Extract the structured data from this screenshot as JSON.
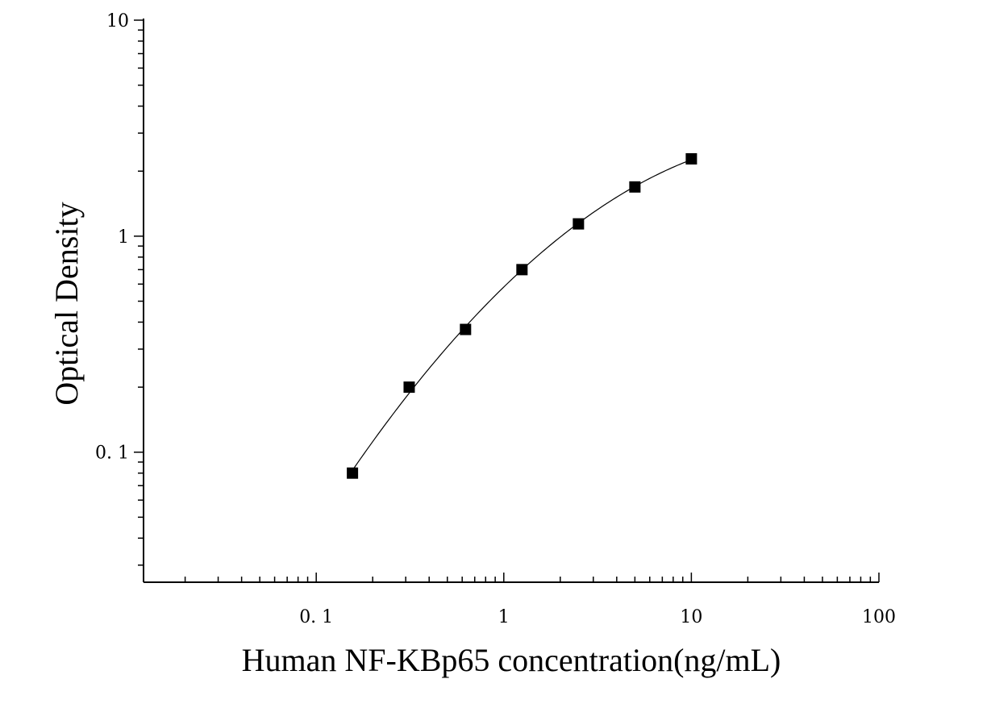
{
  "chart_data": {
    "type": "scatter",
    "title": "",
    "xlabel": "Human NF-KBp65 concentration(ng/mL)",
    "ylabel": "Optical Density",
    "x_scale": "log",
    "y_scale": "log",
    "xlim": [
      0.012,
      100
    ],
    "ylim": [
      0.025,
      10
    ],
    "x_ticks": [
      {
        "value": 0.1,
        "label": "0. 1"
      },
      {
        "value": 1,
        "label": "1"
      },
      {
        "value": 10,
        "label": "10"
      },
      {
        "value": 100,
        "label": "100"
      }
    ],
    "y_ticks": [
      {
        "value": 0.1,
        "label": "0. 1"
      },
      {
        "value": 1,
        "label": "1"
      },
      {
        "value": 10,
        "label": "10"
      }
    ],
    "grid": false,
    "legend": "none",
    "points": [
      {
        "x": 0.156,
        "y": 0.08
      },
      {
        "x": 0.313,
        "y": 0.2
      },
      {
        "x": 0.625,
        "y": 0.37
      },
      {
        "x": 1.25,
        "y": 0.7
      },
      {
        "x": 2.5,
        "y": 1.14
      },
      {
        "x": 5,
        "y": 1.69
      },
      {
        "x": 10,
        "y": 2.28
      }
    ],
    "fit_curve": true,
    "marker": "square",
    "color": "#000000"
  }
}
